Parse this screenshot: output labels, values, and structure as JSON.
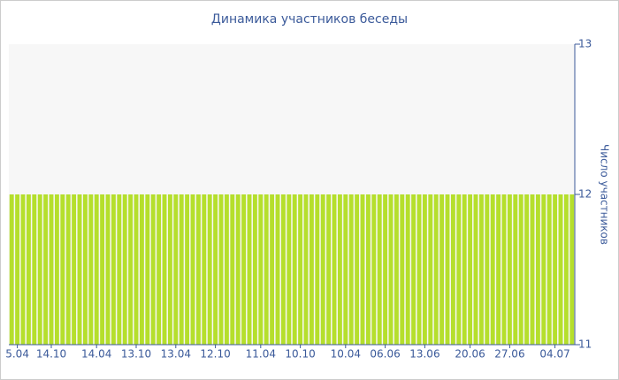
{
  "chart_data": {
    "type": "bar",
    "title": "Динамика участников беседы",
    "y_label": "Число участников",
    "categories": [
      null,
      "5.04",
      null,
      null,
      null,
      null,
      null,
      "14.10",
      null,
      null,
      null,
      null,
      null,
      null,
      null,
      "14.04",
      null,
      null,
      null,
      null,
      null,
      null,
      "13.10",
      null,
      null,
      null,
      null,
      null,
      null,
      "13.04",
      null,
      null,
      null,
      null,
      null,
      null,
      "12.10",
      null,
      null,
      null,
      null,
      null,
      null,
      null,
      "11.04",
      null,
      null,
      null,
      null,
      null,
      null,
      "10.10",
      null,
      null,
      null,
      null,
      null,
      null,
      null,
      "10.04",
      null,
      null,
      null,
      null,
      null,
      null,
      "06.06",
      null,
      null,
      null,
      null,
      null,
      null,
      "13.06",
      null,
      null,
      null,
      null,
      null,
      null,
      null,
      "20.06",
      null,
      null,
      null,
      null,
      null,
      null,
      "27.06",
      null,
      null,
      null,
      null,
      null,
      null,
      null,
      "04.07",
      null,
      null,
      null
    ],
    "values": [
      12,
      12,
      12,
      12,
      12,
      12,
      12,
      12,
      12,
      12,
      12,
      12,
      12,
      12,
      12,
      12,
      12,
      12,
      12,
      12,
      12,
      12,
      12,
      12,
      12,
      12,
      12,
      12,
      12,
      12,
      12,
      12,
      12,
      12,
      12,
      12,
      12,
      12,
      12,
      12,
      12,
      12,
      12,
      12,
      12,
      12,
      12,
      12,
      12,
      12,
      12,
      12,
      12,
      12,
      12,
      12,
      12,
      12,
      12,
      12,
      12,
      12,
      12,
      12,
      12,
      12,
      12,
      12,
      12,
      12,
      12,
      12,
      12,
      12,
      12,
      12,
      12,
      12,
      12,
      12,
      12,
      12,
      12,
      12,
      12,
      12,
      12,
      12,
      12,
      12,
      12,
      12,
      12,
      12,
      12,
      12,
      12,
      12,
      12,
      12
    ],
    "color": "#b5df2c",
    "ylim": [
      11,
      13
    ],
    "yticks": [
      11,
      12,
      13
    ],
    "y_axis_side": "right"
  }
}
